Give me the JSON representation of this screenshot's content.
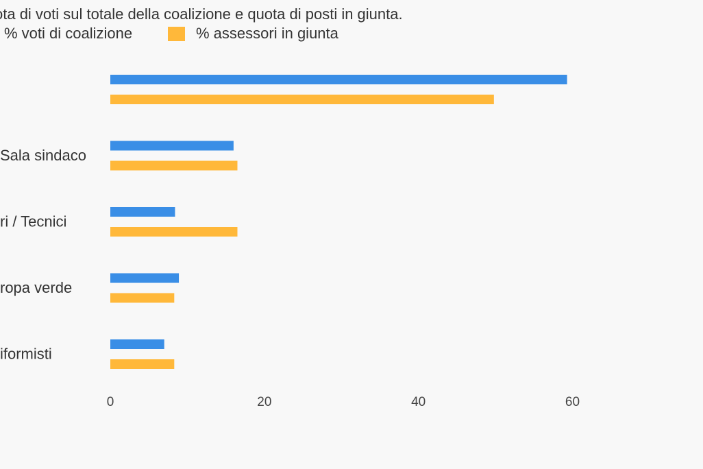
{
  "chart_data": {
    "type": "bar",
    "orientation": "horizontal",
    "subtitle": "ota di voti sul totale della coalizione e quota di posti in giunta.",
    "categories": [
      "",
      "Sala sindaco",
      "ri / Tecnici",
      "ropa verde",
      "iformisti"
    ],
    "series": [
      {
        "name": "% voti di coalizione",
        "color": "#3a8ee6",
        "values": [
          59.3,
          16.0,
          8.4,
          8.9,
          7.0
        ]
      },
      {
        "name": "% assessori in giunta",
        "color": "#ffb83a",
        "values": [
          49.8,
          16.5,
          16.5,
          8.3,
          8.3
        ]
      }
    ],
    "xlim": [
      0,
      75
    ],
    "xticks": [
      "0",
      "20",
      "40",
      "60"
    ],
    "xtick_values": [
      0,
      20,
      40,
      60
    ],
    "grid": false,
    "legend_position": "top-left"
  }
}
